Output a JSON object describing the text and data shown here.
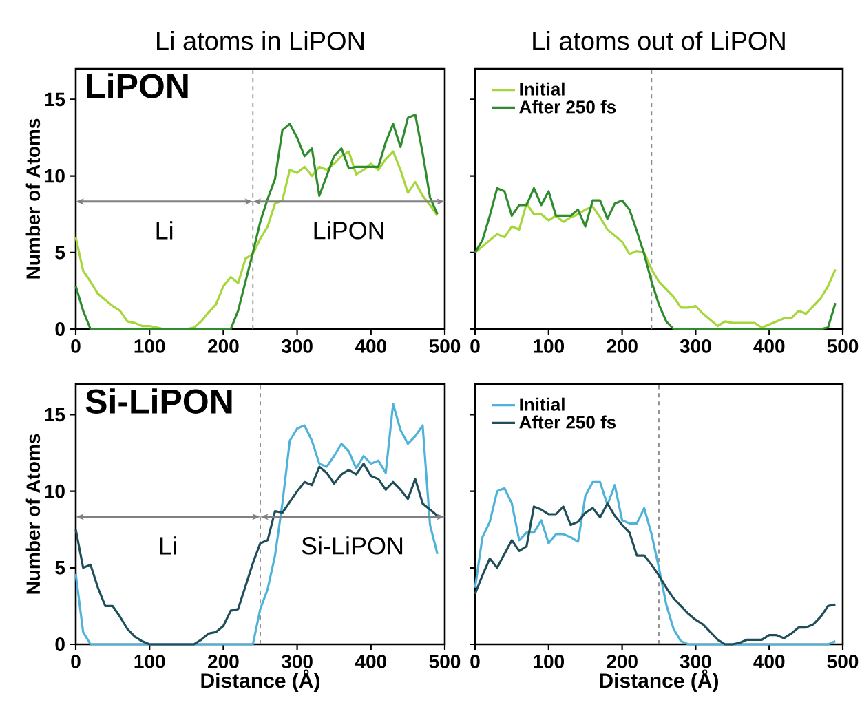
{
  "chart_data": [
    {
      "type": "line",
      "title": "Li atoms in LiPON",
      "ylabel": "Number of Atoms",
      "annotations": [
        "**LiPON**",
        "Li",
        "LiPON"
      ],
      "x": [
        0,
        10,
        20,
        30,
        40,
        50,
        60,
        70,
        80,
        90,
        100,
        110,
        120,
        130,
        140,
        150,
        160,
        170,
        180,
        190,
        200,
        210,
        220,
        230,
        240,
        250,
        260,
        270,
        280,
        290,
        300,
        310,
        320,
        330,
        340,
        350,
        360,
        370,
        380,
        390,
        400,
        410,
        420,
        430,
        440,
        450,
        460,
        470,
        480,
        490
      ],
      "series": [
        {
          "color": "#a6d63a",
          "values": [
            6,
            3.8,
            3.1,
            2.3,
            1.9,
            1.5,
            1.2,
            0.5,
            0.4,
            0.2,
            0.2,
            0.1,
            0,
            0,
            0,
            0,
            0.1,
            0.5,
            1.1,
            1.6,
            2.8,
            3.4,
            3.0,
            4.6,
            4.9,
            5.9,
            6.7,
            8.2,
            8.4,
            10.4,
            10.2,
            10.6,
            10.0,
            10.6,
            10.4,
            10.8,
            11.3,
            11.6,
            10.1,
            10.4,
            10.8,
            10.4,
            11.1,
            11.6,
            10.4,
            8.9,
            9.6,
            8.7,
            8.1,
            7.4
          ]
        },
        {
          "color": "#2e8b2e",
          "values": [
            2.8,
            1.2,
            0,
            0,
            0,
            0,
            0,
            0,
            0,
            0,
            0,
            0,
            0,
            0,
            0,
            0,
            0,
            0,
            0,
            0,
            0,
            0,
            1.2,
            3.1,
            5,
            7,
            8.5,
            9.8,
            13,
            13.4,
            12.5,
            11.3,
            11.8,
            8.7,
            10,
            11.3,
            11.8,
            10.5,
            10.6,
            10.6,
            10.6,
            10.6,
            12.2,
            13.4,
            11.9,
            13.8,
            14,
            11.5,
            8.6,
            7.5
          ]
        }
      ],
      "ref_lines": [
        {
          "axis": "x",
          "value": 240,
          "color": "#888888",
          "line_style": "dashed"
        }
      ],
      "xlim": [
        0,
        500
      ],
      "ylim": [
        0,
        17
      ],
      "xticks": [
        0,
        100,
        200,
        300,
        400,
        500
      ],
      "yticks": [
        0,
        5,
        10,
        15
      ],
      "legend": false
    },
    {
      "type": "line",
      "title": "Li atoms out of LiPON",
      "x": [
        0,
        10,
        20,
        30,
        40,
        50,
        60,
        70,
        80,
        90,
        100,
        110,
        120,
        130,
        140,
        150,
        160,
        170,
        180,
        190,
        200,
        210,
        220,
        230,
        240,
        250,
        260,
        270,
        280,
        290,
        300,
        310,
        320,
        330,
        340,
        350,
        360,
        370,
        380,
        390,
        400,
        410,
        420,
        430,
        440,
        450,
        460,
        470,
        480,
        490
      ],
      "series": [
        {
          "name": "Initial",
          "color": "#a6d63a",
          "values": [
            5,
            5.4,
            5.8,
            6.2,
            6.0,
            6.7,
            6.5,
            8.2,
            7.5,
            7.5,
            7.1,
            7.4,
            7.0,
            7.3,
            7.5,
            7.8,
            8.0,
            7.3,
            6.5,
            6.1,
            5.7,
            4.9,
            5.1,
            5.0,
            3.9,
            3.1,
            2.6,
            2.1,
            1.4,
            1.4,
            1.5,
            1.0,
            0.6,
            0.2,
            0.5,
            0.4,
            0.4,
            0.4,
            0.4,
            0.1,
            0.3,
            0.5,
            0.7,
            0.7,
            1.2,
            1.0,
            1.5,
            2.0,
            2.8,
            3.9
          ]
        },
        {
          "name": "After 250 fs",
          "color": "#2e8b2e",
          "values": [
            5,
            5.8,
            7.4,
            9.2,
            9.0,
            7.4,
            8.1,
            8.1,
            9.2,
            8.1,
            9.0,
            7.4,
            7.4,
            7.4,
            7.8,
            6.7,
            8.4,
            8.4,
            7.2,
            8.2,
            8.4,
            7.8,
            6.4,
            4.9,
            3.1,
            1.6,
            0.5,
            0,
            0,
            0,
            0,
            0,
            0,
            0,
            0,
            0,
            0,
            0,
            0,
            0,
            0,
            0,
            0,
            0,
            0,
            0,
            0,
            0,
            0.1,
            1.7
          ]
        }
      ],
      "ref_lines": [
        {
          "axis": "x",
          "value": 240,
          "color": "#888888",
          "line_style": "dashed"
        }
      ],
      "xlim": [
        0,
        500
      ],
      "ylim": [
        0,
        17
      ],
      "xticks": [
        0,
        100,
        200,
        300,
        400,
        500
      ],
      "yticks": [
        0,
        5,
        10,
        15
      ],
      "tick_labels": "x",
      "legend": "top left"
    },
    {
      "type": "line",
      "xlabel": "Distance (Å)",
      "ylabel": "Number of Atoms",
      "annotations": [
        "**Si-LiPON**",
        "Li",
        "Si-LiPON"
      ],
      "x": [
        0,
        10,
        20,
        30,
        40,
        50,
        60,
        70,
        80,
        90,
        100,
        110,
        120,
        130,
        140,
        150,
        160,
        170,
        180,
        190,
        200,
        210,
        220,
        230,
        240,
        250,
        260,
        270,
        280,
        290,
        300,
        310,
        320,
        330,
        340,
        350,
        360,
        370,
        380,
        390,
        400,
        410,
        420,
        430,
        440,
        450,
        460,
        470,
        480,
        490
      ],
      "series": [
        {
          "color": "#4fb3d9",
          "values": [
            4.6,
            0.8,
            0,
            0,
            0,
            0,
            0,
            0,
            0,
            0,
            0,
            0,
            0,
            0,
            0,
            0,
            0,
            0,
            0,
            0,
            0,
            0,
            0,
            0,
            0,
            2.3,
            3.6,
            5.8,
            9.2,
            13.3,
            14.1,
            14.3,
            13.3,
            11.8,
            11.6,
            12.3,
            13.1,
            12.6,
            11.5,
            12.3,
            11.8,
            12.0,
            11.2,
            15.7,
            14.0,
            13.1,
            13.6,
            14.3,
            7.8,
            5.9
          ]
        },
        {
          "color": "#1f4e5a",
          "values": [
            7.5,
            5.0,
            5.2,
            3.7,
            2.5,
            2.5,
            1.8,
            1.0,
            0.5,
            0.2,
            0,
            0,
            0,
            0,
            0,
            0,
            0,
            0.3,
            0.7,
            0.8,
            1.2,
            2.2,
            2.3,
            3.8,
            5.3,
            6.6,
            6.8,
            8.7,
            8.6,
            9.3,
            10.0,
            10.6,
            10.4,
            11.6,
            11.2,
            10.5,
            11.1,
            11.4,
            11.1,
            11.8,
            11.0,
            10.8,
            10.1,
            10.6,
            10.1,
            9.5,
            10.8,
            9.2,
            8.8,
            8.4
          ]
        }
      ],
      "ref_lines": [
        {
          "axis": "x",
          "value": 250,
          "color": "#888888",
          "line_style": "dashed"
        }
      ],
      "xlim": [
        0,
        500
      ],
      "ylim": [
        0,
        17
      ],
      "xticks": [
        0,
        100,
        200,
        300,
        400,
        500
      ],
      "yticks": [
        0,
        5,
        10,
        15
      ],
      "legend": false
    },
    {
      "type": "line",
      "xlabel": "Distance (Å)",
      "x": [
        0,
        10,
        20,
        30,
        40,
        50,
        60,
        70,
        80,
        90,
        100,
        110,
        120,
        130,
        140,
        150,
        160,
        170,
        180,
        190,
        200,
        210,
        220,
        230,
        240,
        250,
        260,
        270,
        280,
        290,
        300,
        310,
        320,
        330,
        340,
        350,
        360,
        370,
        380,
        390,
        400,
        410,
        420,
        430,
        440,
        450,
        460,
        470,
        480,
        490
      ],
      "series": [
        {
          "name": "Initial",
          "color": "#4fb3d9",
          "values": [
            3.7,
            7.0,
            8.0,
            10.0,
            10.2,
            9.2,
            6.8,
            7.3,
            7.3,
            8.1,
            6.6,
            7.2,
            7.2,
            7.0,
            6.7,
            9.7,
            10.6,
            10.6,
            9.1,
            10.4,
            8.1,
            7.9,
            7.9,
            8.9,
            7.2,
            5.0,
            2.6,
            1.0,
            0.2,
            0,
            0,
            0,
            0,
            0,
            0,
            0,
            0,
            0,
            0,
            0,
            0,
            0,
            0,
            0,
            0,
            0,
            0,
            0,
            0,
            0.2
          ]
        },
        {
          "name": "After 250 fs",
          "color": "#1f4e5a",
          "values": [
            3.3,
            4.5,
            5.6,
            5.0,
            5.9,
            6.8,
            6.1,
            6.4,
            9.0,
            8.8,
            8.5,
            8.5,
            9.0,
            7.8,
            8.0,
            8.6,
            8.9,
            8.3,
            9.2,
            8.4,
            7.8,
            7.3,
            5.8,
            5.8,
            5.2,
            4.5,
            3.7,
            3.0,
            2.5,
            2.0,
            1.6,
            1.3,
            0.8,
            0.3,
            0,
            0,
            0.1,
            0.3,
            0.3,
            0.3,
            0.6,
            0.6,
            0.4,
            0.7,
            1.1,
            1.1,
            1.3,
            1.8,
            2.5,
            2.6
          ]
        }
      ],
      "ref_lines": [
        {
          "axis": "x",
          "value": 250,
          "color": "#888888",
          "line_style": "dashed"
        }
      ],
      "xlim": [
        0,
        500
      ],
      "ylim": [
        0,
        17
      ],
      "xticks": [
        0,
        100,
        200,
        300,
        400,
        500
      ],
      "yticks": [
        0,
        5,
        10,
        15
      ],
      "tick_labels": "x",
      "legend": "top left"
    }
  ]
}
